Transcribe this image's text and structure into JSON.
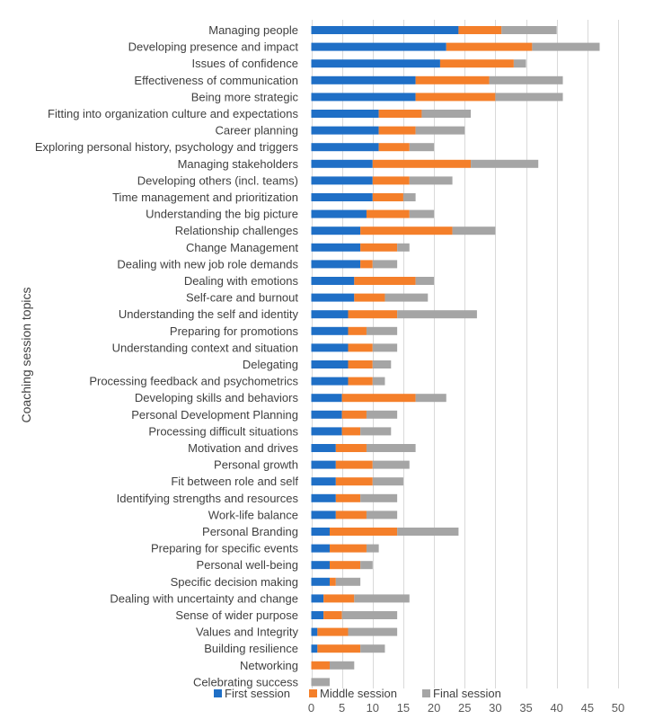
{
  "chart_data": {
    "type": "bar",
    "orientation": "horizontal",
    "stacked": true,
    "title": "",
    "xlabel": "",
    "ylabel": "Coaching session topics",
    "xlim": [
      0,
      50
    ],
    "xticks": [
      0,
      5,
      10,
      15,
      20,
      25,
      30,
      35,
      40,
      45,
      50
    ],
    "grid": true,
    "legend_position": "bottom",
    "categories": [
      "Managing people",
      "Developing presence and impact",
      "Issues of confidence",
      "Effectiveness of communication",
      "Being more strategic",
      "Fitting into organization culture and expectations",
      "Career planning",
      "Exploring personal history, psychology and triggers",
      "Managing stakeholders",
      "Developing others (incl. teams)",
      "Time management and prioritization",
      "Understanding the big picture",
      "Relationship challenges",
      "Change Management",
      "Dealing with new job role demands",
      "Dealing with emotions",
      "Self-care and burnout",
      "Understanding the self and identity",
      "Preparing for promotions",
      "Understanding context and situation",
      "Delegating",
      "Processing feedback and psychometrics",
      "Developing skills and behaviors",
      "Personal Development Planning",
      "Processing difficult situations",
      "Motivation and drives",
      "Personal growth",
      "Fit between role and self",
      "Identifying strengths and resources",
      "Work-life balance",
      "Personal Branding",
      "Preparing for specific events",
      "Personal well-being",
      "Specific decision making",
      "Dealing with uncertainty and change",
      "Sense of wider purpose",
      "Values and Integrity",
      "Building resilience",
      "Networking",
      "Celebrating success"
    ],
    "series": [
      {
        "name": "First session",
        "color": "#1f6fc6",
        "values": [
          24,
          22,
          21,
          17,
          17,
          11,
          11,
          11,
          10,
          10,
          10,
          9,
          8,
          8,
          8,
          7,
          7,
          6,
          6,
          6,
          6,
          6,
          5,
          5,
          5,
          4,
          4,
          4,
          4,
          4,
          3,
          3,
          3,
          3,
          2,
          2,
          1,
          1,
          0,
          0
        ]
      },
      {
        "name": "Middle session",
        "color": "#f47f2a",
        "values": [
          7,
          14,
          12,
          12,
          13,
          7,
          6,
          5,
          16,
          6,
          5,
          7,
          15,
          6,
          2,
          10,
          5,
          8,
          3,
          4,
          4,
          4,
          12,
          4,
          3,
          5,
          6,
          6,
          4,
          5,
          11,
          6,
          5,
          1,
          5,
          3,
          5,
          7,
          3,
          0
        ]
      },
      {
        "name": "Final session",
        "color": "#a5a5a5",
        "values": [
          9,
          11,
          2,
          12,
          11,
          8,
          8,
          4,
          11,
          7,
          2,
          4,
          7,
          2,
          4,
          3,
          7,
          13,
          5,
          4,
          3,
          2,
          5,
          5,
          5,
          8,
          6,
          5,
          6,
          5,
          10,
          2,
          2,
          4,
          9,
          9,
          8,
          4,
          4,
          3
        ]
      }
    ]
  }
}
